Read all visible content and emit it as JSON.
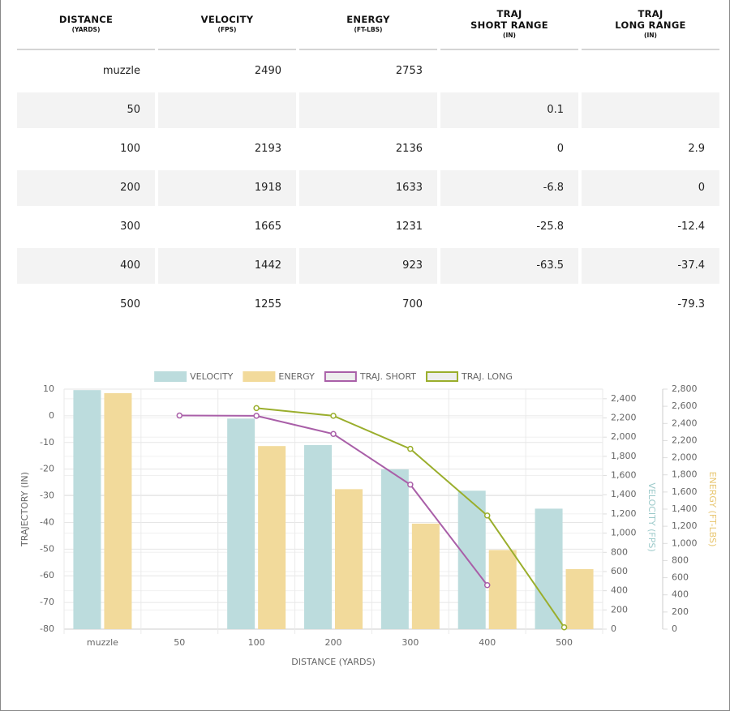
{
  "table": {
    "headers": [
      {
        "title": [
          "DISTANCE"
        ],
        "unit": "(YARDS)"
      },
      {
        "title": [
          "VELOCITY"
        ],
        "unit": "(FPS)"
      },
      {
        "title": [
          "ENERGY"
        ],
        "unit": "(FT-LBS)"
      },
      {
        "title": [
          "TRAJ",
          "SHORT RANGE"
        ],
        "unit": "(IN)"
      },
      {
        "title": [
          "TRAJ",
          "LONG RANGE"
        ],
        "unit": "(IN)"
      }
    ],
    "rows": [
      [
        "muzzle",
        "2490",
        "2753",
        null,
        null
      ],
      [
        "50",
        null,
        null,
        "0.1",
        null
      ],
      [
        "100",
        "2193",
        "2136",
        "0",
        "2.9"
      ],
      [
        "200",
        "1918",
        "1633",
        "-6.8",
        "0"
      ],
      [
        "300",
        "1665",
        "1231",
        "-25.8",
        "-12.4"
      ],
      [
        "400",
        "1442",
        "923",
        "-63.5",
        "-37.4"
      ],
      [
        "500",
        "1255",
        "700",
        null,
        "-79.3"
      ]
    ]
  },
  "chart_data": {
    "type": "bar",
    "x_label": "DISTANCE (YARDS)",
    "y_label": "TRAJECTORY (IN)",
    "y2_label": "VELOCITY (FPS)",
    "y3_label": "ENERGY (FT-LBS)",
    "categories": [
      "muzzle",
      "50",
      "100",
      "200",
      "300",
      "400",
      "500"
    ],
    "ylim": [
      -80,
      10
    ],
    "yticks": [
      -80,
      -70,
      -60,
      -50,
      -40,
      -30,
      -20,
      -10,
      0,
      10
    ],
    "y2lim": [
      0,
      2500
    ],
    "y2ticks": [
      0,
      200,
      400,
      600,
      800,
      {
        "value": 1000,
        "label": "1,000"
      },
      {
        "value": 1200,
        "label": "1,200"
      },
      {
        "value": 1400,
        "label": "1,400"
      },
      {
        "value": 1600,
        "label": "1,600"
      },
      {
        "value": 1800,
        "label": "1,800"
      },
      {
        "value": 2000,
        "label": "2,000"
      },
      {
        "value": 2200,
        "label": "2,200"
      },
      {
        "value": 2400,
        "label": "2,400"
      }
    ],
    "y3lim": [
      0,
      2800
    ],
    "y3ticks": [
      0,
      200,
      400,
      600,
      800,
      {
        "value": 1000,
        "label": "1,000"
      },
      {
        "value": 1200,
        "label": "1,200"
      },
      {
        "value": 1400,
        "label": "1,400"
      },
      {
        "value": 1600,
        "label": "1,600"
      },
      {
        "value": 1800,
        "label": "1,800"
      },
      {
        "value": 2000,
        "label": "2,000"
      },
      {
        "value": 2200,
        "label": "2,200"
      },
      {
        "value": 2400,
        "label": "2,400"
      },
      {
        "value": 2600,
        "label": "2,600"
      },
      {
        "value": 2800,
        "label": "2,800"
      }
    ],
    "grid": true,
    "series": [
      {
        "name": "VELOCITY",
        "kind": "bar",
        "axis": "y2",
        "color": "#bcdcdd",
        "values": [
          2490,
          null,
          2193,
          1918,
          1665,
          1442,
          1255
        ]
      },
      {
        "name": "ENERGY",
        "kind": "bar",
        "axis": "y3",
        "color": "#f2da9b",
        "values": [
          2753,
          null,
          2136,
          1633,
          1231,
          923,
          700
        ]
      },
      {
        "name": "TRAJ. SHORT",
        "kind": "line",
        "axis": "y",
        "color": "#a95fa8",
        "values": [
          null,
          0.1,
          0,
          -6.8,
          -25.8,
          -63.5,
          null
        ]
      },
      {
        "name": "TRAJ. LONG",
        "kind": "line",
        "axis": "y",
        "color": "#9aae2c",
        "values": [
          null,
          null,
          2.9,
          0,
          -12.4,
          -37.4,
          -79.3
        ]
      }
    ]
  }
}
